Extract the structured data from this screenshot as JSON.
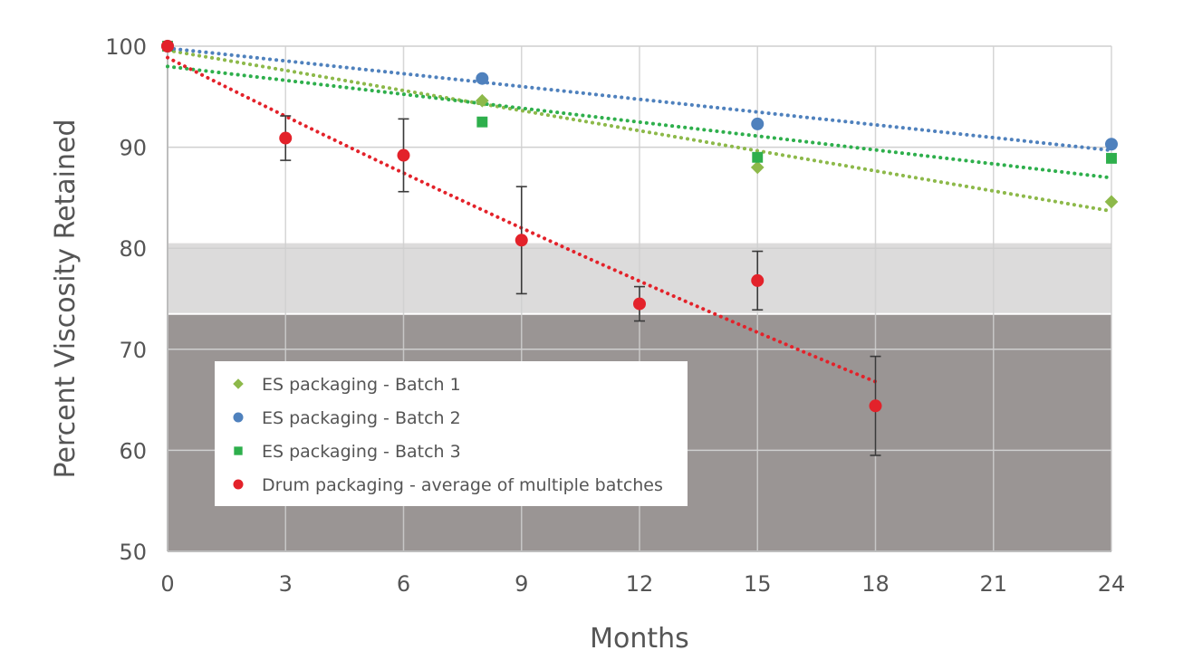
{
  "chart_data": {
    "type": "scatter",
    "xlabel": "Months",
    "ylabel": "Percent Viscosity Retained",
    "ylim": [
      50,
      100
    ],
    "x_ticks": [
      0,
      3,
      6,
      9,
      12,
      15,
      18,
      21,
      24
    ],
    "y_ticks": [
      50,
      60,
      70,
      80,
      90,
      100
    ],
    "grid": true,
    "legend_position": "lower-left",
    "bands": [
      {
        "from": 73.5,
        "to": 80.5,
        "color": "#dcdbdb"
      },
      {
        "from": 50,
        "to": 73.5,
        "color": "#9a9594"
      }
    ],
    "series": [
      {
        "name": "ES packaging - Batch 1",
        "marker": "diamond",
        "color": "#8db94a",
        "trendline": "linear",
        "points": [
          {
            "x": 0,
            "y": 100
          },
          {
            "x": 8,
            "y": 94.6
          },
          {
            "x": 15,
            "y": 88
          },
          {
            "x": 24,
            "y": 84.6
          }
        ]
      },
      {
        "name": "ES packaging - Batch 2",
        "marker": "circle",
        "color": "#4f81bd",
        "trendline": "linear",
        "points": [
          {
            "x": 0,
            "y": 100
          },
          {
            "x": 8,
            "y": 96.8
          },
          {
            "x": 15,
            "y": 92.3
          },
          {
            "x": 24,
            "y": 90.3
          }
        ]
      },
      {
        "name": "ES packaging - Batch 3",
        "marker": "square",
        "color": "#2eaf4c",
        "trendline": "linear",
        "points": [
          {
            "x": 0,
            "y": 100
          },
          {
            "x": 8,
            "y": 92.5
          },
          {
            "x": 15,
            "y": 89
          },
          {
            "x": 24,
            "y": 88.9
          }
        ]
      },
      {
        "name": "Drum packaging - average of multiple batches",
        "marker": "circle",
        "color": "#e3222a",
        "trendline": "polynomial",
        "points": [
          {
            "x": 0,
            "y": 100,
            "err": 0
          },
          {
            "x": 3,
            "y": 90.9,
            "err": 2.2
          },
          {
            "x": 6,
            "y": 89.2,
            "err": 3.6
          },
          {
            "x": 9,
            "y": 80.8,
            "err": 5.3
          },
          {
            "x": 12,
            "y": 74.5,
            "err": 1.7
          },
          {
            "x": 15,
            "y": 76.8,
            "err": 2.9
          },
          {
            "x": 18,
            "y": 64.4,
            "err": 4.9
          }
        ]
      }
    ]
  }
}
